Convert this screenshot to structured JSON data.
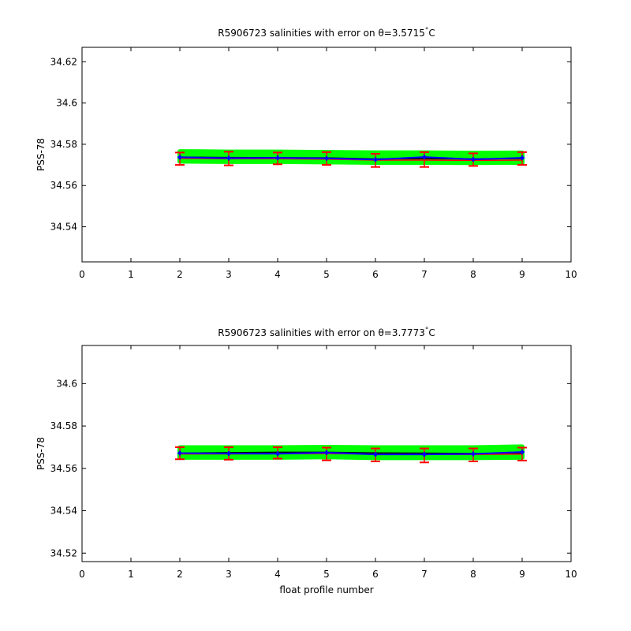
{
  "chart_data": [
    {
      "type": "line",
      "title": "R5906723 salinities with error on θ=3.5715°C",
      "title_parts": {
        "prefix": "R5906723 salinities with error on θ=3.5715",
        "degree": "°",
        "unit": "C"
      },
      "xlabel": "",
      "ylabel": "PSS-78",
      "xlim": [
        0,
        10
      ],
      "ylim": [
        34.523,
        34.627
      ],
      "xticks": [
        0,
        1,
        2,
        3,
        4,
        5,
        6,
        7,
        8,
        9,
        10
      ],
      "yticks": [
        34.54,
        34.56,
        34.58,
        34.6,
        34.62
      ],
      "ytick_labels": [
        "34.54",
        "34.56",
        "34.58",
        "34.6",
        "34.62"
      ],
      "grid": false,
      "colors": {
        "band": "#00ff00",
        "errorbar": "#ff0000",
        "line": "#0000ff",
        "mean": "#000000"
      },
      "x": [
        2,
        3,
        4,
        5,
        6,
        7,
        8,
        9
      ],
      "band": {
        "lower": [
          34.5718,
          34.5716,
          34.5716,
          34.5714,
          34.5712,
          34.5712,
          34.5711,
          34.5712
        ],
        "upper": [
          34.5765,
          34.5763,
          34.5763,
          34.5761,
          34.5759,
          34.5759,
          34.5757,
          34.5758
        ]
      },
      "series": [
        {
          "values": [
            34.5737,
            34.5733,
            34.5734,
            34.5732,
            34.5726,
            34.5738,
            34.5727,
            34.5734
          ],
          "err_low": [
            34.57,
            34.5698,
            34.5703,
            34.57,
            34.569,
            34.569,
            34.5695,
            34.57
          ],
          "err_high": [
            34.576,
            34.5764,
            34.576,
            34.5762,
            34.5754,
            34.5762,
            34.5756,
            34.5762
          ]
        },
        {
          "values": [
            34.5738,
            34.5736,
            34.5735,
            34.5734,
            34.5729,
            34.573,
            34.5729,
            34.5731
          ]
        },
        {
          "values": [
            34.5732,
            34.573,
            34.573,
            34.5728,
            34.5723,
            34.5723,
            34.5722,
            34.5723
          ]
        }
      ]
    },
    {
      "type": "line",
      "title": "R5906723 salinities with error on θ=3.7773°C",
      "title_parts": {
        "prefix": "R5906723 salinities with error on θ=3.7773",
        "degree": "°",
        "unit": "C"
      },
      "xlabel": "float profile number",
      "ylabel": "PSS-78",
      "xlim": [
        0,
        10
      ],
      "ylim": [
        34.516,
        34.618
      ],
      "xticks": [
        0,
        1,
        2,
        3,
        4,
        5,
        6,
        7,
        8,
        9,
        10
      ],
      "yticks": [
        34.52,
        34.54,
        34.56,
        34.58,
        34.6
      ],
      "ytick_labels": [
        "34.52",
        "34.54",
        "34.56",
        "34.58",
        "34.6"
      ],
      "grid": false,
      "colors": {
        "band": "#00ff00",
        "errorbar": "#ff0000",
        "line": "#0000ff",
        "mean": "#000000"
      },
      "x": [
        2,
        3,
        4,
        5,
        6,
        7,
        8,
        9
      ],
      "band": {
        "lower": [
          34.5652,
          34.5652,
          34.5652,
          34.5654,
          34.565,
          34.565,
          34.565,
          34.5652
        ],
        "upper": [
          34.5698,
          34.5698,
          34.5698,
          34.57,
          34.5698,
          34.5698,
          34.5698,
          34.5702
        ]
      },
      "series": [
        {
          "values": [
            34.5672,
            34.567,
            34.5669,
            34.5674,
            34.5666,
            34.5666,
            34.5668,
            34.5677
          ],
          "err_low": [
            34.5643,
            34.5641,
            34.5646,
            34.5638,
            34.5633,
            34.5628,
            34.5633,
            34.5637
          ],
          "err_high": [
            34.57,
            34.57,
            34.57,
            34.5698,
            34.5694,
            34.5694,
            34.5694,
            34.5698
          ]
        },
        {
          "values": [
            34.5672,
            34.5674,
            34.5676,
            34.5676,
            34.5673,
            34.5672,
            34.567,
            34.5672
          ]
        },
        {
          "values": [
            34.5668,
            34.5668,
            34.5669,
            34.567,
            34.5667,
            34.5666,
            34.5666,
            34.5667
          ]
        }
      ]
    }
  ]
}
